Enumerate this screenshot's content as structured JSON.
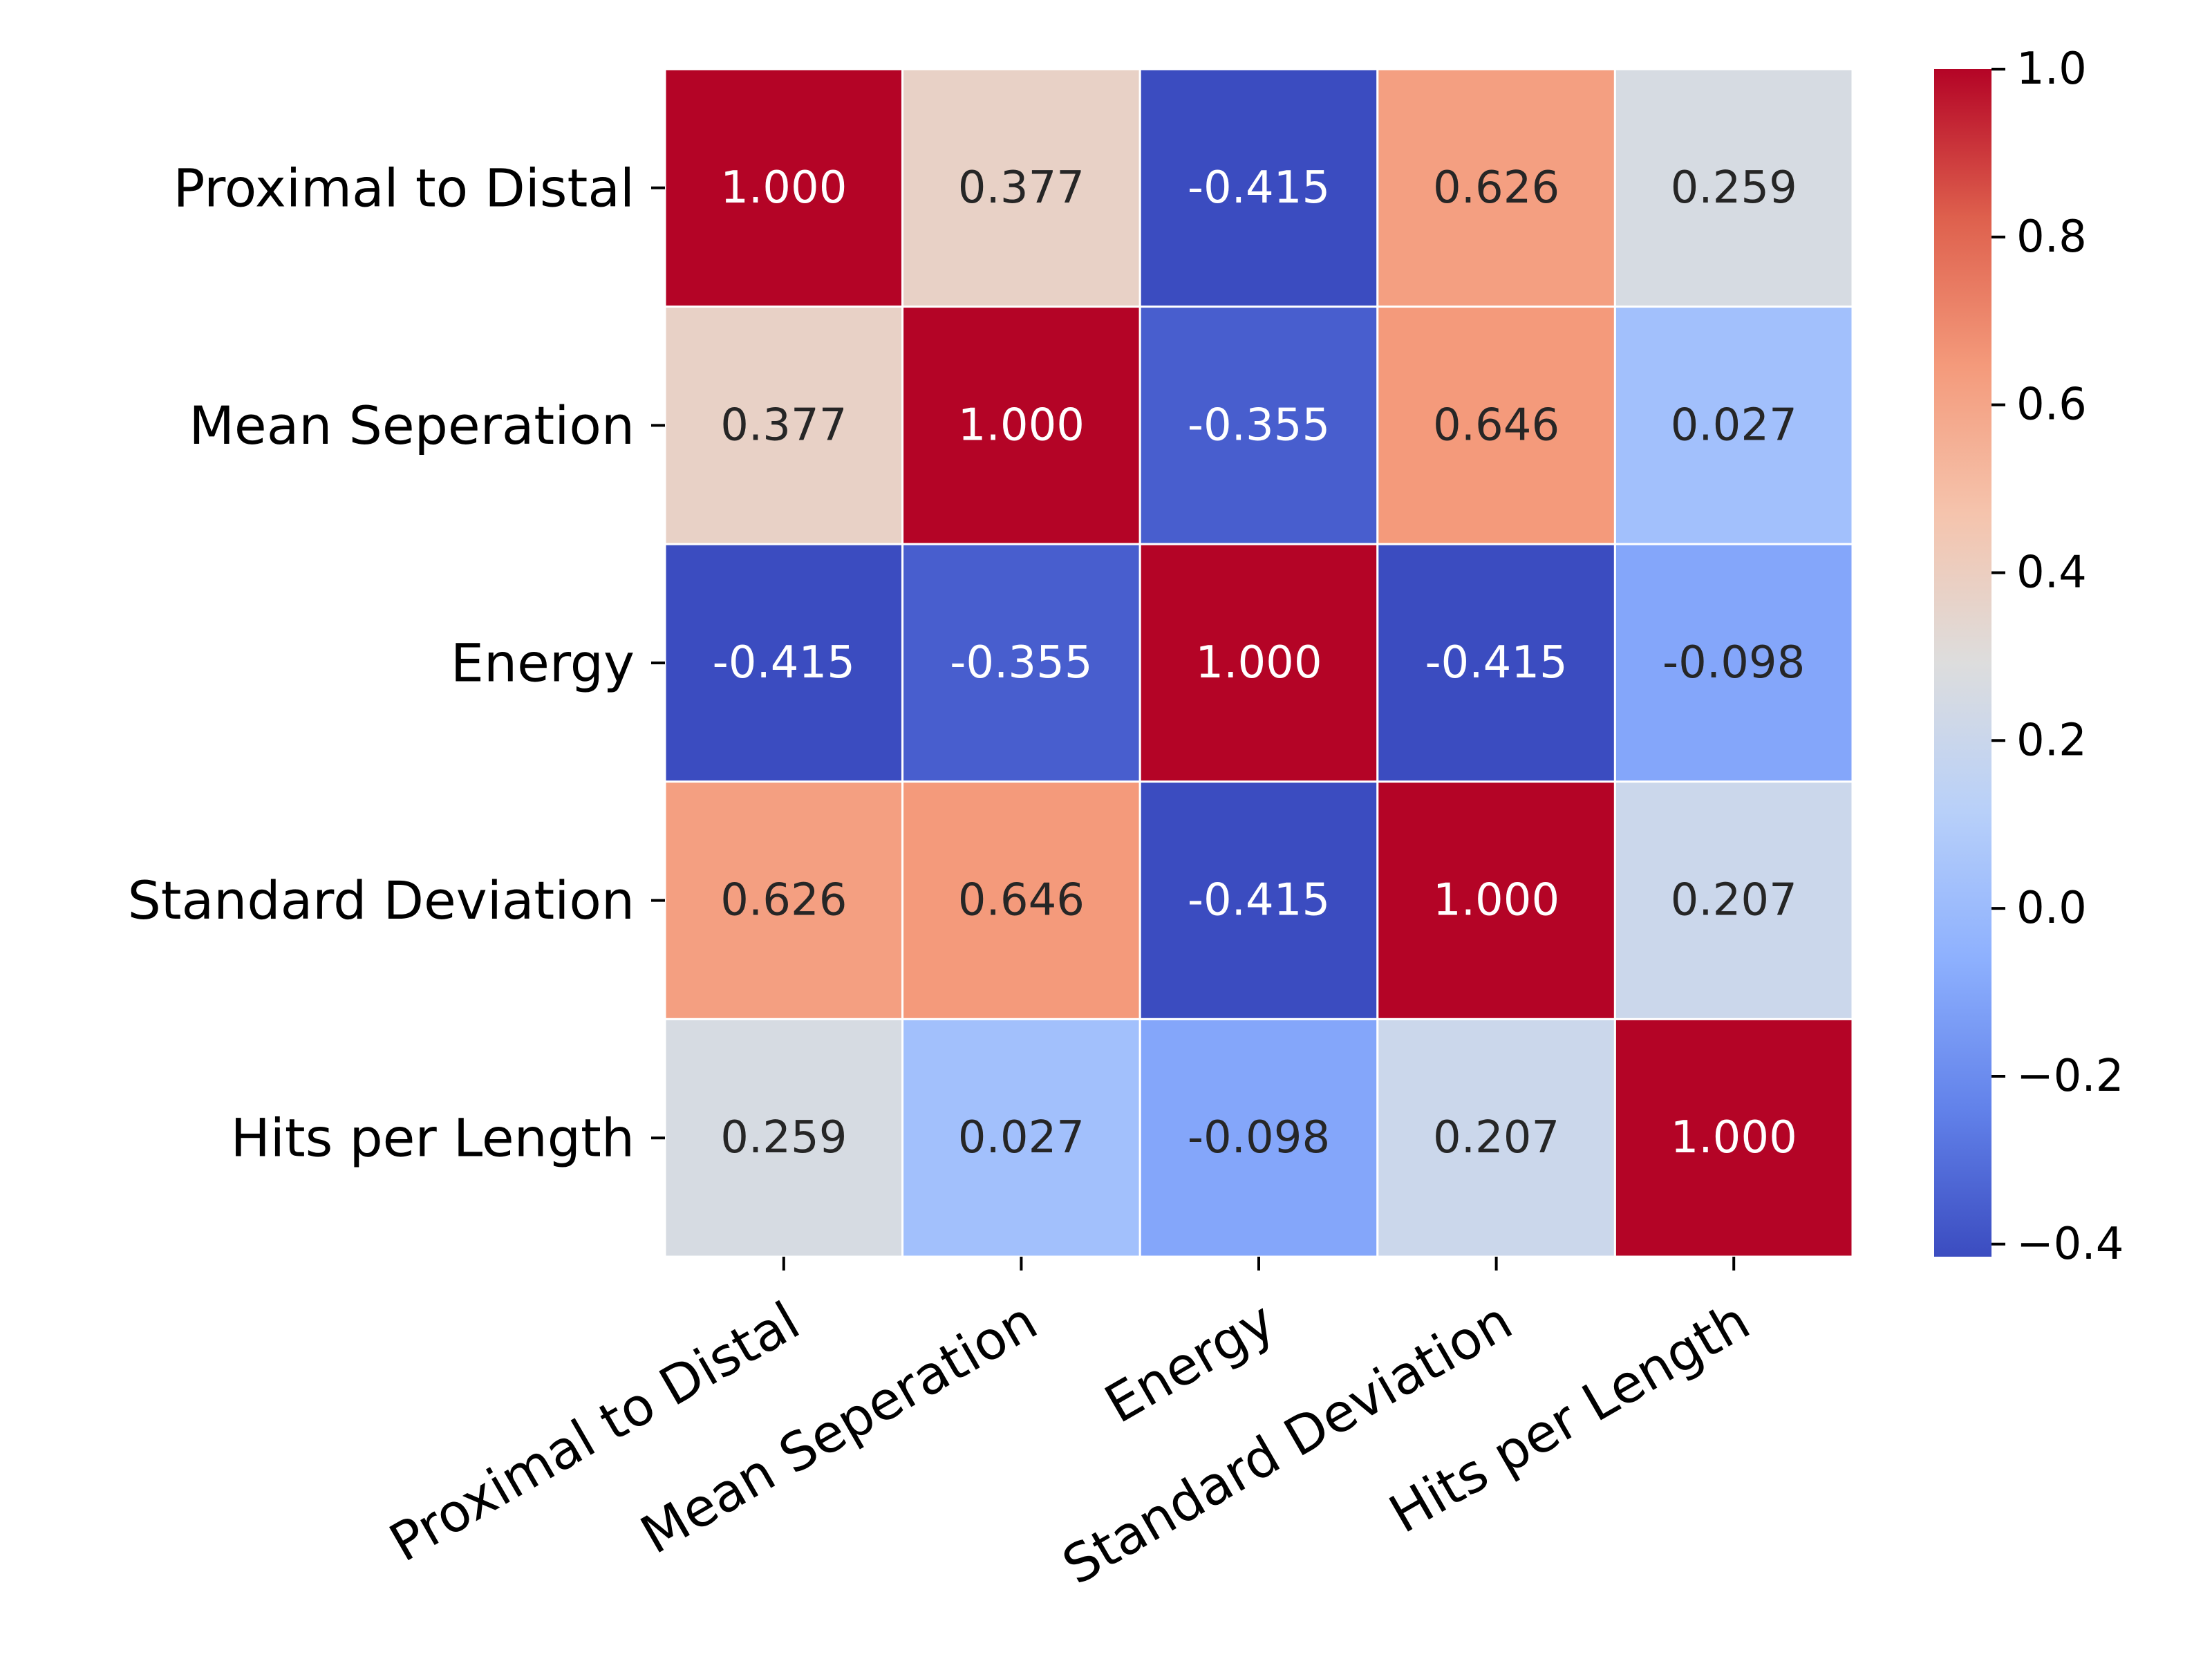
{
  "chart_data": {
    "type": "heatmap",
    "title": "",
    "xlabel": "",
    "ylabel": "",
    "x_labels": [
      "Proximal to Distal",
      "Mean Seperation",
      "Energy",
      "Standard Deviation",
      "Hits per Length"
    ],
    "y_labels": [
      "Proximal to Distal",
      "Mean Seperation",
      "Energy",
      "Standard Deviation",
      "Hits per Length"
    ],
    "values": [
      [
        1.0,
        0.377,
        -0.415,
        0.626,
        0.259
      ],
      [
        0.377,
        1.0,
        -0.355,
        0.646,
        0.027
      ],
      [
        -0.415,
        -0.355,
        1.0,
        -0.415,
        -0.098
      ],
      [
        0.626,
        0.646,
        -0.415,
        1.0,
        0.207
      ],
      [
        0.259,
        0.027,
        -0.098,
        0.207,
        1.0
      ]
    ],
    "cell_labels": [
      [
        "1.000",
        "0.377",
        "-0.415",
        "0.626",
        "0.259"
      ],
      [
        "0.377",
        "1.000",
        "-0.355",
        "0.646",
        "0.027"
      ],
      [
        "-0.415",
        "-0.355",
        "1.000",
        "-0.415",
        "-0.098"
      ],
      [
        "0.626",
        "0.646",
        "-0.415",
        "1.000",
        "0.207"
      ],
      [
        "0.259",
        "0.027",
        "-0.098",
        "0.207",
        "1.000"
      ]
    ],
    "colormap": "coolwarm",
    "colorbar": {
      "range": [
        -0.415,
        1.0
      ],
      "ticks": [
        -0.4,
        -0.2,
        0.0,
        0.2,
        0.4,
        0.6,
        0.8,
        1.0
      ],
      "tick_labels": [
        "−0.4",
        "−0.2",
        "0.0",
        "0.2",
        "0.4",
        "0.6",
        "0.8",
        "1.0"
      ]
    },
    "grid": true,
    "grid_color": "#ffffff",
    "text_color_dark": "#262626",
    "text_color_light": "#ffffff"
  }
}
